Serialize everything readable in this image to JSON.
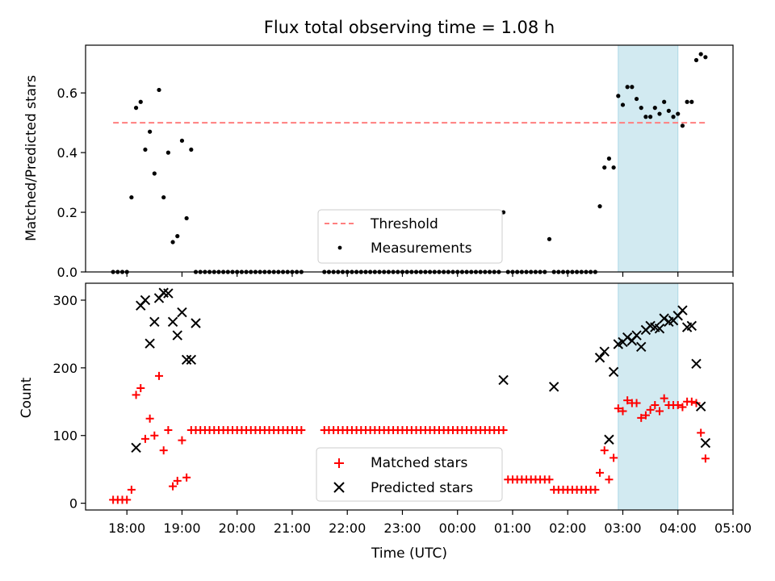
{
  "title": "Flux total observing time = 1.08 h",
  "xlabel": "Time (UTC)",
  "chart_data": [
    {
      "type": "scatter",
      "ylabel": "Matched/Predicted stars",
      "ylim": [
        0,
        0.76
      ],
      "yticks": [
        0.0,
        0.2,
        0.4,
        0.6
      ],
      "ytick_labels": [
        "0.0",
        "0.2",
        "0.4",
        "0.6"
      ],
      "threshold": {
        "name": "Threshold",
        "value": 0.5,
        "x_range": [
          "17:45",
          "04:30"
        ],
        "color": "#ff7f7f"
      },
      "shaded_span": {
        "start": "02:55",
        "end": "04:00",
        "color": "#add8e6"
      },
      "legend": {
        "position": "lower-center",
        "entries": [
          "Threshold",
          "Measurements"
        ]
      },
      "series": [
        {
          "name": "Measurements",
          "color": "#000000",
          "marker": "dot",
          "x": [
            "17:45",
            "17:50",
            "17:55",
            "18:00",
            "18:05",
            "18:10",
            "18:15",
            "18:20",
            "18:25",
            "18:30",
            "18:35",
            "18:40",
            "18:45",
            "18:50",
            "18:55",
            "19:00",
            "19:05",
            "19:10",
            "19:15",
            "19:20",
            "19:25",
            "19:30",
            "19:35",
            "19:40",
            "19:45",
            "19:50",
            "19:55",
            "20:00",
            "20:05",
            "20:10",
            "20:15",
            "20:20",
            "20:25",
            "20:30",
            "20:35",
            "20:40",
            "20:45",
            "20:50",
            "20:55",
            "21:00",
            "21:05",
            "21:10",
            "21:35",
            "21:40",
            "21:45",
            "21:50",
            "21:55",
            "22:00",
            "22:05",
            "22:10",
            "22:15",
            "22:20",
            "22:25",
            "22:30",
            "22:35",
            "22:40",
            "22:45",
            "22:50",
            "22:55",
            "23:00",
            "23:05",
            "23:10",
            "23:15",
            "23:20",
            "23:25",
            "23:30",
            "23:35",
            "23:40",
            "23:45",
            "23:50",
            "23:55",
            "00:00",
            "00:05",
            "00:10",
            "00:15",
            "00:20",
            "00:25",
            "00:30",
            "00:35",
            "00:40",
            "00:45",
            "00:50",
            "00:55",
            "01:00",
            "01:05",
            "01:10",
            "01:15",
            "01:20",
            "01:25",
            "01:30",
            "01:35",
            "01:40",
            "01:45",
            "01:50",
            "01:55",
            "02:00",
            "02:05",
            "02:10",
            "02:15",
            "02:20",
            "02:25",
            "02:30",
            "02:35",
            "02:40",
            "02:45",
            "02:50",
            "02:55",
            "03:00",
            "03:05",
            "03:10",
            "03:15",
            "03:20",
            "03:25",
            "03:30",
            "03:35",
            "03:40",
            "03:45",
            "03:50",
            "03:55",
            "04:00",
            "04:05",
            "04:10",
            "04:15",
            "04:20",
            "04:25",
            "04:30"
          ],
          "y": [
            0,
            0,
            0,
            0,
            0.25,
            0.55,
            0.57,
            0.41,
            0.47,
            0.33,
            0.61,
            0.25,
            0.4,
            0.1,
            0.12,
            0.44,
            0.18,
            0.41,
            0,
            0,
            0,
            0,
            0,
            0,
            0,
            0,
            0,
            0,
            0,
            0,
            0,
            0,
            0,
            0,
            0,
            0,
            0,
            0,
            0,
            0,
            0,
            0,
            0,
            0,
            0,
            0,
            0,
            0,
            0,
            0,
            0,
            0,
            0,
            0,
            0,
            0,
            0,
            0,
            0,
            0,
            0,
            0,
            0,
            0,
            0,
            0,
            0,
            0,
            0,
            0,
            0,
            0,
            0,
            0,
            0,
            0,
            0,
            0,
            0,
            0,
            0,
            0.2,
            0,
            0,
            0,
            0,
            0,
            0,
            0,
            0,
            0,
            0.11,
            0,
            0,
            0,
            0,
            0,
            0,
            0,
            0,
            0,
            0,
            0.22,
            0.35,
            0.38,
            0.35,
            0.59,
            0.56,
            0.62,
            0.62,
            0.58,
            0.55,
            0.52,
            0.52,
            0.55,
            0.53,
            0.57,
            0.54,
            0.52,
            0.53,
            0.49,
            0.57,
            0.57,
            0.71,
            0.73,
            0.72
          ]
        }
      ]
    },
    {
      "type": "scatter",
      "ylabel": "Count",
      "ylim": [
        -10,
        325
      ],
      "yticks": [
        0,
        100,
        200,
        300
      ],
      "ytick_labels": [
        "0",
        "100",
        "200",
        "300"
      ],
      "xlim": [
        "17:15",
        "05:00"
      ],
      "xticks": [
        "18:00",
        "19:00",
        "20:00",
        "21:00",
        "22:00",
        "23:00",
        "00:00",
        "01:00",
        "02:00",
        "03:00",
        "04:00",
        "05:00"
      ],
      "shaded_span": {
        "start": "02:55",
        "end": "04:00",
        "color": "#add8e6"
      },
      "legend": {
        "position": "lower-center",
        "entries": [
          "Matched stars",
          "Predicted stars"
        ]
      },
      "series": [
        {
          "name": "Matched stars",
          "color": "#ff0000",
          "marker": "plus",
          "x": [
            "17:45",
            "17:50",
            "17:55",
            "18:00",
            "18:05",
            "18:10",
            "18:15",
            "18:20",
            "18:25",
            "18:30",
            "18:35",
            "18:40",
            "18:45",
            "18:50",
            "18:55",
            "19:00",
            "19:05",
            "19:10",
            "19:15",
            "19:20",
            "19:25",
            "19:30",
            "19:35",
            "19:40",
            "19:45",
            "19:50",
            "19:55",
            "20:00",
            "20:05",
            "20:10",
            "20:15",
            "20:20",
            "20:25",
            "20:30",
            "20:35",
            "20:40",
            "20:45",
            "20:50",
            "20:55",
            "21:00",
            "21:05",
            "21:10",
            "21:35",
            "21:40",
            "21:45",
            "21:50",
            "21:55",
            "22:00",
            "22:05",
            "22:10",
            "22:15",
            "22:20",
            "22:25",
            "22:30",
            "22:35",
            "22:40",
            "22:45",
            "22:50",
            "22:55",
            "23:00",
            "23:05",
            "23:10",
            "23:15",
            "23:20",
            "23:25",
            "23:30",
            "23:35",
            "23:40",
            "23:45",
            "23:50",
            "23:55",
            "00:00",
            "00:05",
            "00:10",
            "00:15",
            "00:20",
            "00:25",
            "00:30",
            "00:35",
            "00:40",
            "00:45",
            "00:50",
            "00:55",
            "01:00",
            "01:05",
            "01:10",
            "01:15",
            "01:20",
            "01:25",
            "01:30",
            "01:35",
            "01:40",
            "01:45",
            "01:50",
            "01:55",
            "02:00",
            "02:05",
            "02:10",
            "02:15",
            "02:20",
            "02:25",
            "02:30",
            "02:35",
            "02:40",
            "02:45",
            "02:50",
            "02:55",
            "03:00",
            "03:05",
            "03:10",
            "03:15",
            "03:20",
            "03:25",
            "03:30",
            "03:35",
            "03:40",
            "03:45",
            "03:50",
            "03:55",
            "04:00",
            "04:05",
            "04:10",
            "04:15",
            "04:20",
            "04:25",
            "04:30"
          ],
          "y": [
            5,
            5,
            5,
            5,
            20,
            160,
            170,
            95,
            125,
            100,
            188,
            78,
            108,
            25,
            33,
            93,
            38,
            108,
            108,
            108,
            108,
            108,
            108,
            108,
            108,
            108,
            108,
            108,
            108,
            108,
            108,
            108,
            108,
            108,
            108,
            108,
            108,
            108,
            108,
            108,
            108,
            108,
            108,
            108,
            108,
            108,
            108,
            108,
            108,
            108,
            108,
            108,
            108,
            108,
            108,
            108,
            108,
            108,
            108,
            108,
            108,
            108,
            108,
            108,
            108,
            108,
            108,
            108,
            108,
            108,
            108,
            108,
            108,
            108,
            108,
            108,
            108,
            108,
            108,
            108,
            108,
            108,
            35,
            35,
            35,
            35,
            35,
            35,
            35,
            35,
            35,
            35,
            20,
            20,
            20,
            20,
            20,
            20,
            20,
            20,
            20,
            20,
            45,
            78,
            35,
            67,
            140,
            136,
            152,
            148,
            148,
            126,
            130,
            138,
            145,
            136,
            155,
            145,
            145,
            145,
            142,
            150,
            150,
            148,
            104,
            66
          ]
        },
        {
          "name": "Predicted stars",
          "color": "#000000",
          "marker": "x",
          "x": [
            "18:10",
            "18:15",
            "18:20",
            "18:25",
            "18:30",
            "18:35",
            "18:40",
            "18:45",
            "18:50",
            "18:55",
            "19:00",
            "19:05",
            "19:10",
            "19:15",
            "00:50",
            "01:45",
            "02:35",
            "02:40",
            "02:45",
            "02:50",
            "02:55",
            "03:00",
            "03:05",
            "03:10",
            "03:15",
            "03:20",
            "03:25",
            "03:30",
            "03:35",
            "03:40",
            "03:45",
            "03:50",
            "03:55",
            "04:00",
            "04:05",
            "04:10",
            "04:15",
            "04:20",
            "04:25",
            "04:30"
          ],
          "y": [
            82,
            292,
            300,
            236,
            268,
            303,
            311,
            310,
            268,
            248,
            282,
            212,
            212,
            266,
            182,
            172,
            215,
            224,
            94,
            194,
            235,
            238,
            245,
            240,
            248,
            231,
            256,
            262,
            260,
            258,
            273,
            268,
            270,
            277,
            285,
            260,
            262,
            206,
            143,
            89
          ]
        }
      ]
    }
  ]
}
